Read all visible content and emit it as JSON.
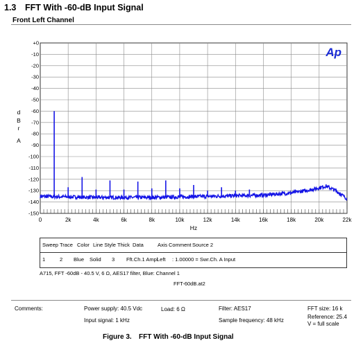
{
  "section": {
    "number": "1.3",
    "title": "FFT With -60-dB Input Signal"
  },
  "subtitle": "Front Left Channel",
  "logo": "Ap",
  "chart_data": {
    "type": "line",
    "xlabel": "Hz",
    "ylabel": "d B r   A",
    "xlim": [
      0,
      22000
    ],
    "ylim": [
      -150,
      0
    ],
    "x_ticks": [
      "0",
      "2k",
      "4k",
      "6k",
      "8k",
      "10k",
      "12k",
      "14k",
      "16k",
      "18k",
      "20k",
      "22k"
    ],
    "y_ticks": [
      "+0",
      "-10",
      "-20",
      "-30",
      "-40",
      "-50",
      "-60",
      "-70",
      "-80",
      "-90",
      "-100",
      "-110",
      "-120",
      "-130",
      "-140",
      "-150"
    ],
    "grid": true,
    "series": [
      {
        "color": "#1515e6",
        "noise_floor": [
          [
            0,
            -135
          ],
          [
            4000,
            -136
          ],
          [
            8000,
            -136
          ],
          [
            12000,
            -135
          ],
          [
            16000,
            -134
          ],
          [
            18000,
            -132
          ],
          [
            19500,
            -129
          ],
          [
            20500,
            -126
          ],
          [
            21200,
            -130
          ],
          [
            22000,
            -137
          ]
        ],
        "peaks": [
          [
            1000,
            -60
          ],
          [
            2000,
            -127
          ],
          [
            3000,
            -118
          ],
          [
            4000,
            -129
          ],
          [
            5000,
            -121
          ],
          [
            6000,
            -129
          ],
          [
            7000,
            -122
          ],
          [
            8000,
            -128
          ],
          [
            9000,
            -121
          ],
          [
            10000,
            -128
          ],
          [
            11000,
            -125
          ],
          [
            12000,
            -130
          ],
          [
            13000,
            -127
          ],
          [
            14000,
            -130
          ],
          [
            15000,
            -129
          ]
        ]
      }
    ]
  },
  "legend": {
    "headers": [
      "Sweep",
      "Trace",
      "Color",
      "Line Style",
      "Thick",
      "Data",
      "Axis",
      "Comment",
      "Source 2"
    ],
    "row": [
      "1",
      "2",
      "Blue",
      "Solid",
      "3",
      "Fft.Ch.1 Ampl",
      "Left",
      ": 1.00000 = Swr.Ch. A Input"
    ]
  },
  "legend_note": "A715, FFT -60dB - 40.5 V, 6 Ω, AES17 filter, Blue: Channel 1",
  "file_name": "FFT-60dB.at2",
  "footer": {
    "comments": "Comments:",
    "power": "Power supply: 40.5 Vdc",
    "load": "Load: 6 Ω",
    "filter": "Filter: AES17",
    "fft_size": "FFT size: 16 k",
    "input": "Input signal: 1 kHz",
    "sample": "Sample frequency: 48 kHz",
    "reference": "Reference: 25.4",
    "vfull": "V = full scale"
  },
  "figure": {
    "number": "Figure 3.",
    "caption": "FFT With -60-dB Input Signal"
  }
}
